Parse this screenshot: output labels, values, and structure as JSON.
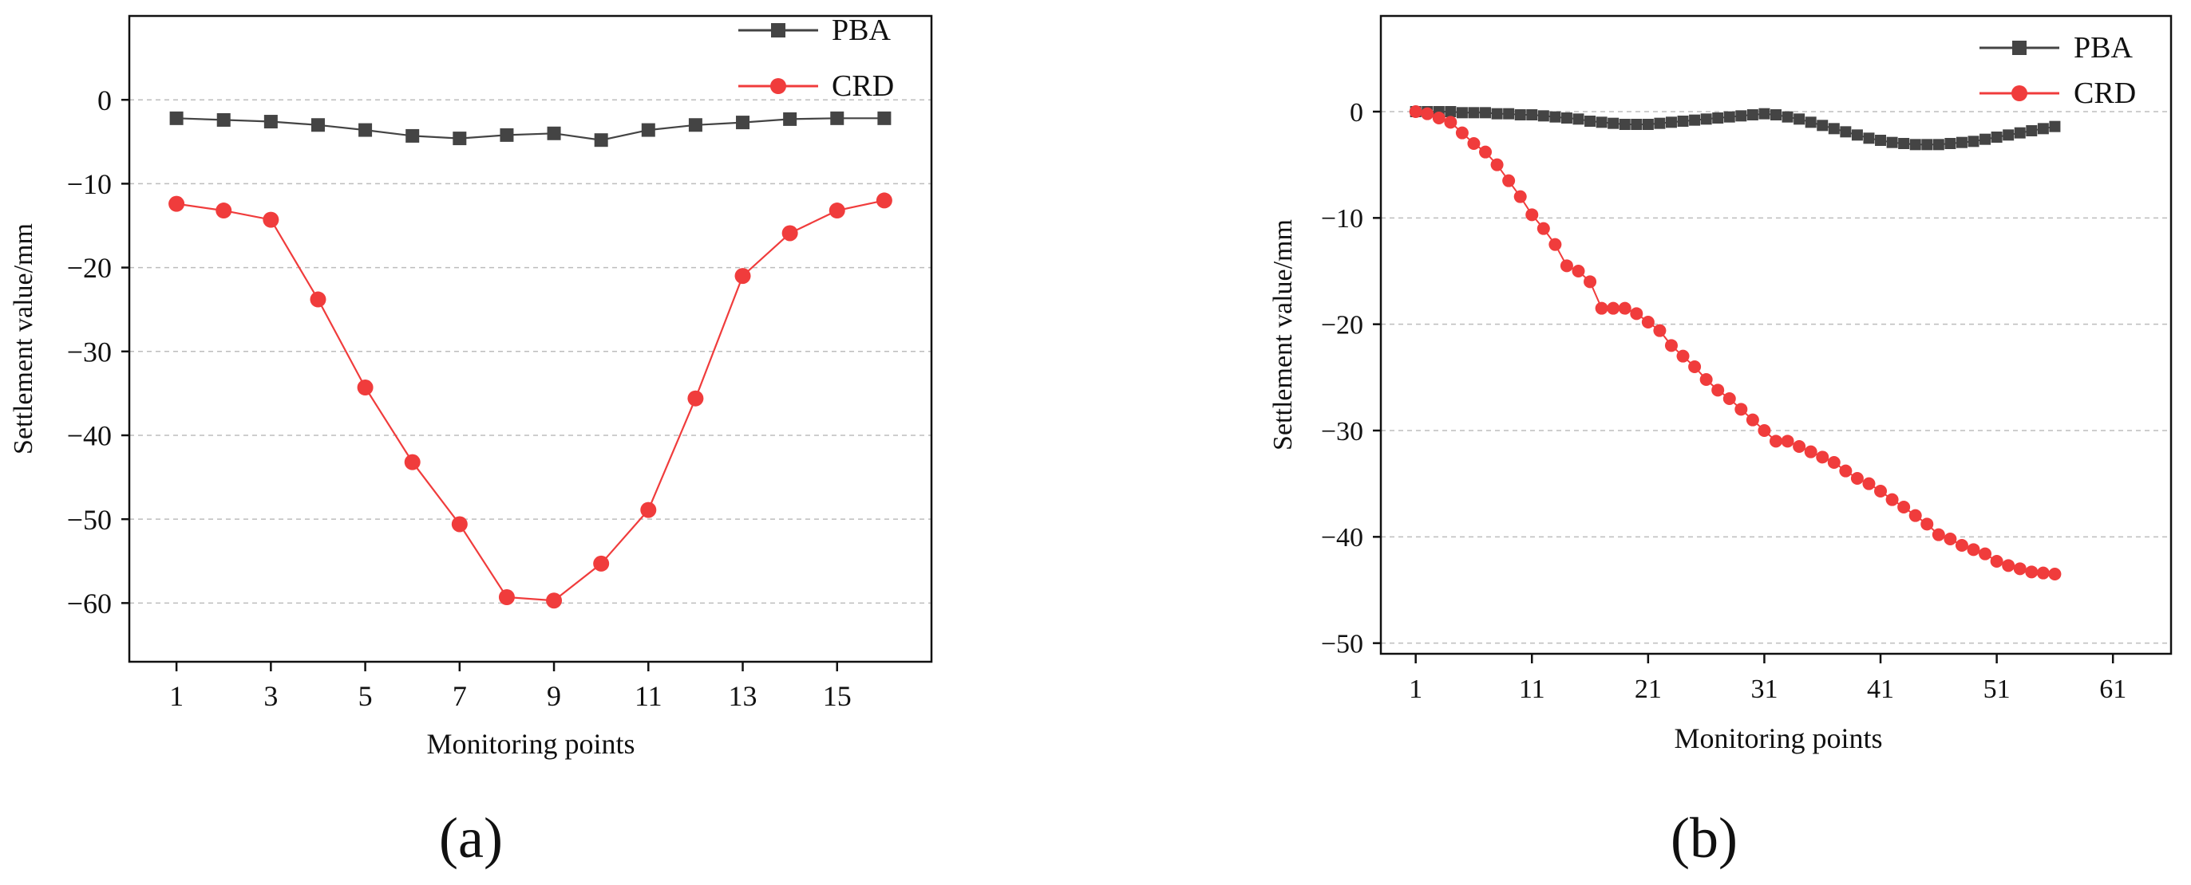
{
  "colors": {
    "pba": "#444444",
    "crd": "#f03c3c",
    "axis": "#111111",
    "grid": "#bdbdbd"
  },
  "chart_data": [
    {
      "panel_label": "a",
      "type": "line",
      "xlabel": "Monitoring points",
      "ylabel": "Settlement value/mm",
      "xlim": [
        0,
        17
      ],
      "ylim": [
        -67,
        10
      ],
      "xticks": [
        1,
        3,
        5,
        7,
        9,
        11,
        13,
        15
      ],
      "yticks": [
        0,
        -10,
        -20,
        -30,
        -40,
        -50,
        -60
      ],
      "grid": true,
      "legend_position": "top-right",
      "x": [
        1,
        2,
        3,
        4,
        5,
        6,
        7,
        8,
        9,
        10,
        11,
        12,
        13,
        14,
        15,
        16
      ],
      "series": [
        {
          "name": "PBA",
          "marker": "square",
          "color": "#444444",
          "values": [
            -2.2,
            -2.4,
            -2.6,
            -3.0,
            -3.6,
            -4.3,
            -4.6,
            -4.2,
            -4.0,
            -4.8,
            -3.6,
            -3.0,
            -2.7,
            -2.3,
            -2.2,
            -2.2
          ]
        },
        {
          "name": "CRD",
          "marker": "circle",
          "color": "#f03c3c",
          "values": [
            -12.4,
            -13.2,
            -14.3,
            -23.8,
            -34.3,
            -43.2,
            -50.6,
            -59.3,
            -59.7,
            -55.3,
            -48.9,
            -35.6,
            -21.0,
            -15.9,
            -13.2,
            -12.0
          ]
        }
      ]
    },
    {
      "panel_label": "b",
      "type": "line",
      "xlabel": "Monitoring points",
      "ylabel": "Settlement value/mm",
      "xlim": [
        -2,
        66
      ],
      "ylim": [
        -51,
        9
      ],
      "xticks": [
        1,
        11,
        21,
        31,
        41,
        51,
        61
      ],
      "yticks": [
        0,
        -10,
        -20,
        -30,
        -40,
        -50
      ],
      "grid": true,
      "legend_position": "top-right",
      "x": [
        1,
        2,
        3,
        4,
        5,
        6,
        7,
        8,
        9,
        10,
        11,
        12,
        13,
        14,
        15,
        16,
        17,
        18,
        19,
        20,
        21,
        22,
        23,
        24,
        25,
        26,
        27,
        28,
        29,
        30,
        31,
        32,
        33,
        34,
        35,
        36,
        37,
        38,
        39,
        40,
        41,
        42,
        43,
        44,
        45,
        46,
        47,
        48,
        49,
        50,
        51,
        52,
        53,
        54,
        55,
        56
      ],
      "series": [
        {
          "name": "PBA",
          "marker": "square",
          "color": "#444444",
          "values": [
            0,
            0,
            0,
            0,
            -0.1,
            -0.1,
            -0.1,
            -0.2,
            -0.2,
            -0.3,
            -0.3,
            -0.4,
            -0.5,
            -0.6,
            -0.7,
            -0.9,
            -1.0,
            -1.1,
            -1.2,
            -1.2,
            -1.2,
            -1.1,
            -1.0,
            -0.9,
            -0.8,
            -0.7,
            -0.6,
            -0.5,
            -0.4,
            -0.3,
            -0.2,
            -0.3,
            -0.5,
            -0.7,
            -1.0,
            -1.3,
            -1.6,
            -1.9,
            -2.2,
            -2.5,
            -2.7,
            -2.9,
            -3.0,
            -3.1,
            -3.1,
            -3.1,
            -3.0,
            -2.9,
            -2.8,
            -2.6,
            -2.4,
            -2.2,
            -2.0,
            -1.8,
            -1.6,
            -1.4
          ]
        },
        {
          "name": "CRD",
          "marker": "circle",
          "color": "#f03c3c",
          "values": [
            0,
            -0.2,
            -0.6,
            -1.0,
            -2.0,
            -3.0,
            -3.8,
            -5.0,
            -6.5,
            -8.0,
            -9.7,
            -11.0,
            -12.5,
            -14.5,
            -15.0,
            -16.0,
            -18.5,
            -18.5,
            -18.5,
            -19.0,
            -19.8,
            -20.6,
            -22.0,
            -23.0,
            -24.0,
            -25.2,
            -26.2,
            -27.0,
            -28.0,
            -29.0,
            -30.0,
            -31.0,
            -31.0,
            -31.5,
            -32.0,
            -32.5,
            -33.0,
            -33.8,
            -34.5,
            -35.0,
            -35.7,
            -36.5,
            -37.2,
            -38.0,
            -38.8,
            -39.8,
            -40.2,
            -40.8,
            -41.2,
            -41.6,
            -42.3,
            -42.7,
            -43.0,
            -43.3,
            -43.4,
            -43.5
          ]
        }
      ]
    }
  ],
  "captions": [
    "(a)",
    "(b)"
  ]
}
